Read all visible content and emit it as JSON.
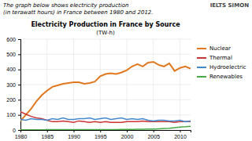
{
  "chart_data": {
    "type": "line",
    "title": "Electricity Production in France by Source",
    "subtitle": "(TW-h)",
    "annotations": [
      "IELTS SIMON",
      "The graph below shows electricity production",
      "(in terawatt hours) in France between 1980 and 2012."
    ],
    "x": [
      1980,
      1981,
      1982,
      1983,
      1984,
      1985,
      1986,
      1987,
      1988,
      1989,
      1990,
      1991,
      1992,
      1993,
      1994,
      1995,
      1996,
      1997,
      1998,
      1999,
      2000,
      2001,
      2002,
      2003,
      2004,
      2005,
      2006,
      2007,
      2008,
      2009,
      2010,
      2011,
      2012
    ],
    "series": [
      {
        "name": "Nuclear",
        "color": "#e07820",
        "values": [
          60,
          100,
          140,
          190,
          230,
          260,
          285,
          295,
          305,
          310,
          315,
          315,
          305,
          310,
          320,
          355,
          370,
          375,
          370,
          380,
          395,
          420,
          435,
          420,
          445,
          450,
          430,
          420,
          440,
          390,
          410,
          420,
          405
        ]
      },
      {
        "name": "Thermal",
        "color": "#cc3333",
        "values": [
          120,
          105,
          90,
          80,
          75,
          65,
          55,
          55,
          60,
          55,
          50,
          60,
          55,
          50,
          55,
          50,
          55,
          50,
          50,
          50,
          55,
          55,
          55,
          60,
          55,
          55,
          55,
          55,
          55,
          50,
          55,
          55,
          55
        ]
      },
      {
        "name": "Hydroelectric",
        "color": "#4488cc",
        "values": [
          70,
          65,
          75,
          70,
          70,
          65,
          75,
          70,
          80,
          70,
          70,
          75,
          75,
          80,
          70,
          75,
          80,
          70,
          75,
          80,
          70,
          75,
          70,
          75,
          65,
          60,
          65,
          65,
          60,
          60,
          65,
          55,
          60
        ]
      },
      {
        "name": "Renewables",
        "color": "#44aa44",
        "values": [
          1,
          1,
          1,
          1,
          1,
          2,
          2,
          2,
          2,
          2,
          2,
          2,
          2,
          2,
          3,
          3,
          3,
          3,
          3,
          4,
          4,
          4,
          5,
          5,
          6,
          6,
          8,
          10,
          12,
          15,
          20,
          22,
          25
        ]
      }
    ],
    "xlim": [
      1980,
      2012
    ],
    "xticks": [
      1980,
      1985,
      1990,
      1995,
      2000,
      2005,
      2010
    ],
    "ylim": [
      0,
      600
    ],
    "yticks": [
      0,
      100,
      200,
      300,
      400,
      500,
      600
    ],
    "grid": true
  }
}
